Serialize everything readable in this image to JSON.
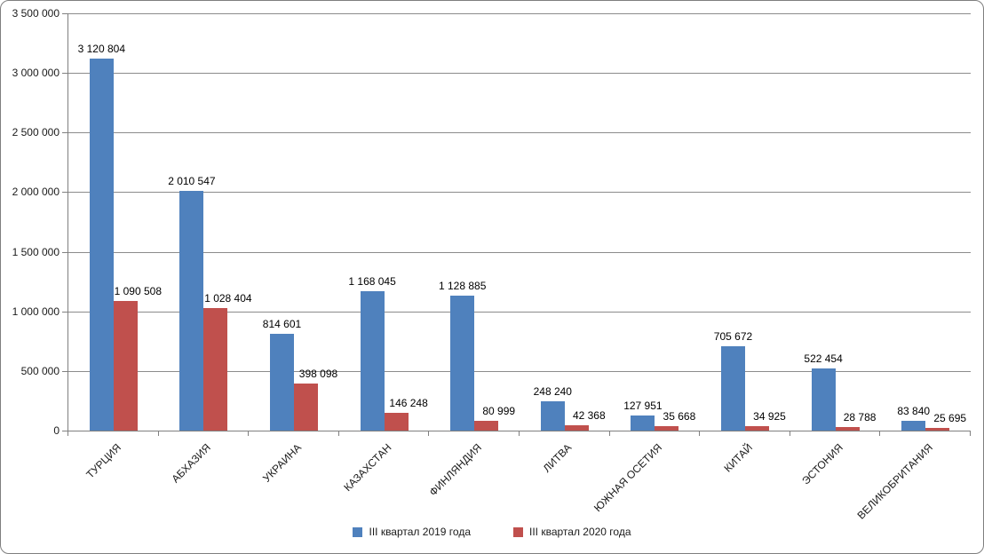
{
  "chart_data": {
    "type": "bar",
    "title": "",
    "categories": [
      "ТУРЦИЯ",
      "АБХАЗИЯ",
      "УКРАИНА",
      "КАЗАХСТАН",
      "ФИНЛЯНДИЯ",
      "ЛИТВА",
      "ЮЖНАЯ ОСЕТИЯ",
      "КИТАЙ",
      "ЭСТОНИЯ",
      "ВЕЛИКОБРИТАНИЯ"
    ],
    "series": [
      {
        "name": "III квартал 2019 года",
        "color": "#4F81BD",
        "values": [
          3120804,
          2010547,
          814601,
          1168045,
          1128885,
          248240,
          127951,
          705672,
          522454,
          83840
        ],
        "labels": [
          "3 120 804",
          "2 010 547",
          "814 601",
          "1 168 045",
          "1 128 885",
          "248 240",
          "127 951",
          "705 672",
          "522 454",
          "83 840"
        ]
      },
      {
        "name": "III квартал 2020 года",
        "color": "#C0504D",
        "values": [
          1090508,
          1028404,
          398098,
          146248,
          80999,
          42368,
          35668,
          34925,
          28788,
          25695
        ],
        "labels": [
          "1 090 508",
          "1 028 404",
          "398 098",
          "146 248",
          "80 999",
          "42 368",
          "35 668",
          "34 925",
          "28 788",
          "25 695"
        ]
      }
    ],
    "y_axis": {
      "min": 0,
      "max": 3500000,
      "step": 500000,
      "tick_labels": [
        "0",
        "500 000",
        "1 000 000",
        "1 500 000",
        "2 000 000",
        "2 500 000",
        "3 000 000",
        "3 500 000"
      ]
    },
    "x_axis": {
      "label": ""
    },
    "grid": true,
    "data_labels": true,
    "legend_position": "bottom",
    "colors": {
      "axis": "#808080",
      "gridline": "#8C8C8C",
      "frame_border": "#7F7F7F",
      "label_text": "#000000",
      "background": "#FFFFFF"
    }
  }
}
